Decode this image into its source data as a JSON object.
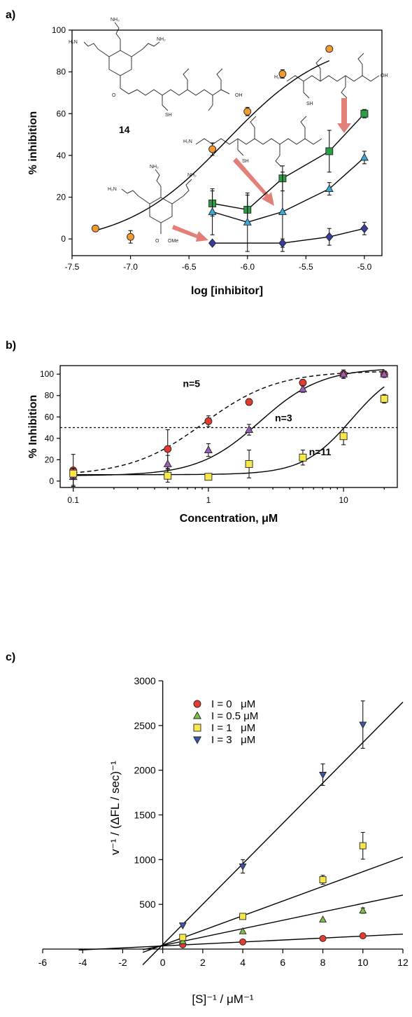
{
  "panels": {
    "a": {
      "label": "a)"
    },
    "b": {
      "label": "b)"
    },
    "c": {
      "label": "c)"
    }
  },
  "structure_labels": {
    "compound_14": "14"
  },
  "chart_data": [
    {
      "id": "a",
      "type": "scatter",
      "xlabel": "log [inhibitor]",
      "ylabel": "% inhibition",
      "xlim": [
        -7.5,
        -4.85
      ],
      "ylim": [
        -8,
        100
      ],
      "xticks": [
        -7.5,
        -7.0,
        -6.5,
        -6.0,
        -5.5,
        -5.0
      ],
      "xtick_labels": [
        "-7.5",
        "-7.0",
        "-6.5",
        "-6.0",
        "-5.5",
        "-5.0"
      ],
      "yticks": [
        0,
        20,
        40,
        60,
        80,
        100
      ],
      "ytick_labels": [
        "0",
        "20",
        "40",
        "60",
        "80",
        "100"
      ],
      "grid": false,
      "fit_curve": {
        "series": "orange",
        "bottom": -3,
        "top": 97,
        "log_ic50": -6.18,
        "hill": 1.0,
        "x_range": [
          -7.3,
          -5.3
        ]
      },
      "series": [
        {
          "marker": "circle",
          "color": "#F39A2F",
          "x": [
            -7.3,
            -7.0,
            -6.3,
            -6.0,
            -5.7,
            -5.3
          ],
          "y": [
            5,
            1,
            43,
            61,
            79,
            91
          ],
          "err": [
            0,
            3,
            3,
            2,
            2,
            0
          ]
        },
        {
          "marker": "square",
          "color": "#2E9E46",
          "x": [
            -6.3,
            -6.0,
            -5.7,
            -5.3,
            -5.0
          ],
          "y": [
            17,
            14,
            29,
            42,
            60
          ],
          "err": [
            6,
            7,
            6,
            10,
            2
          ]
        },
        {
          "marker": "triangle",
          "color": "#39A9D8",
          "x": [
            -6.3,
            -6.0,
            -5.7,
            -5.3,
            -5.0
          ],
          "y": [
            13,
            8,
            13,
            24,
            39
          ],
          "err": [
            11,
            14,
            19,
            3,
            3
          ]
        },
        {
          "marker": "diamond",
          "color": "#3B3B9E",
          "x": [
            -6.3,
            -5.7,
            -5.3,
            -5.0
          ],
          "y": [
            -2,
            -2,
            1,
            5
          ],
          "err": [
            1,
            2,
            4,
            3
          ]
        }
      ]
    },
    {
      "id": "b",
      "type": "scatter",
      "xlabel": "Concentration, μM",
      "ylabel": "% Inhibition",
      "xscale": "log",
      "xlim": [
        0.08,
        25
      ],
      "ylim": [
        -6,
        108
      ],
      "xticks": [
        0.1,
        1,
        10
      ],
      "xtick_labels": [
        "0.1",
        "1",
        "10"
      ],
      "yticks": [
        0,
        20,
        40,
        60,
        80,
        100
      ],
      "ytick_labels": [
        "0",
        "20",
        "40",
        "60",
        "80",
        "100"
      ],
      "grid": false,
      "reference_line": {
        "y": 50,
        "style": "dotted"
      },
      "annotations": [
        {
          "text": "n=5",
          "x": 0.75,
          "y": 88
        },
        {
          "text": "n=3",
          "x": 3.6,
          "y": 56
        },
        {
          "text": "n=11",
          "x": 6.7,
          "y": 24
        }
      ],
      "fit_curves": [
        {
          "series": "red",
          "style": "dashed",
          "bottom": 5,
          "top": 103,
          "ic50": 0.92,
          "hill": 1.6
        },
        {
          "series": "purple",
          "style": "solid",
          "bottom": 5,
          "top": 106,
          "ic50": 2.4,
          "hill": 1.9
        },
        {
          "series": "yellow",
          "style": "solid",
          "bottom": 6,
          "top": 110,
          "ic50": 11.5,
          "hill": 2.4
        }
      ],
      "series": [
        {
          "marker": "circle",
          "color": "#E53B2E",
          "x": [
            0.1,
            0.5,
            1,
            2,
            5,
            10,
            20
          ],
          "y": [
            10,
            30,
            56,
            74,
            92,
            100,
            100
          ],
          "err": [
            15,
            18,
            5,
            3,
            3,
            4,
            3
          ]
        },
        {
          "marker": "triangle",
          "color": "#9C5BB5",
          "x": [
            0.1,
            0.5,
            1,
            2,
            5,
            10,
            20
          ],
          "y": [
            4,
            16,
            29,
            48,
            86,
            100,
            100
          ],
          "err": [
            8,
            8,
            6,
            5,
            3,
            2,
            2
          ]
        },
        {
          "marker": "square",
          "color": "#F6E74A",
          "x": [
            0.1,
            0.5,
            1,
            2,
            5,
            10,
            20
          ],
          "y": [
            7,
            5,
            4,
            16,
            22,
            42,
            77
          ],
          "err": [
            5,
            6,
            3,
            13,
            7,
            8,
            4
          ]
        }
      ]
    },
    {
      "id": "c",
      "type": "scatter",
      "xlabel": "[S]⁻¹ / μM⁻¹",
      "ylabel": "v⁻¹ / (ΔFL / sec)⁻¹",
      "xlim": [
        -6,
        12
      ],
      "ylim": [
        0,
        3000
      ],
      "xticks": [
        -6,
        -4,
        -2,
        0,
        2,
        4,
        6,
        8,
        10,
        12
      ],
      "xtick_labels": [
        "-6",
        "-4",
        "-2",
        "0",
        "2",
        "4",
        "6",
        "8",
        "10",
        "12"
      ],
      "yticks": [
        500,
        1000,
        1500,
        2000,
        2500,
        3000
      ],
      "ytick_labels": [
        "500",
        "1000",
        "1500",
        "2000",
        "2500",
        "3000"
      ],
      "grid": false,
      "legend": {
        "position": "top-left"
      },
      "lines": [
        {
          "series": "I = 0   μM",
          "slope": 11,
          "intercept": 35,
          "x_start": -4.2
        },
        {
          "series": "I = 0.5 μM",
          "slope": 47,
          "intercept": 40,
          "x_start": -1
        },
        {
          "series": "I = 1   μM",
          "slope": 82,
          "intercept": 45,
          "x_start": -1
        },
        {
          "series": "I = 3   μM",
          "slope": 226,
          "intercept": 50,
          "x_start": -1
        }
      ],
      "series": [
        {
          "name": "I = 0   μM",
          "marker": "circle",
          "color": "#E53B2E",
          "x": [
            1,
            4,
            8,
            10
          ],
          "y": [
            48,
            80,
            118,
            148
          ],
          "err": [
            0,
            0,
            0,
            0
          ]
        },
        {
          "name": "I = 0.5 μM",
          "marker": "triangle",
          "color": "#7CC242",
          "x": [
            1,
            4,
            8,
            10
          ],
          "y": [
            88,
            198,
            330,
            430
          ],
          "err": [
            0,
            0,
            0,
            30
          ]
        },
        {
          "name": "I = 1   μM",
          "marker": "square",
          "color": "#F6E74A",
          "x": [
            1,
            4,
            8,
            10
          ],
          "y": [
            130,
            365,
            775,
            1155
          ],
          "err": [
            0,
            0,
            50,
            150
          ]
        },
        {
          "name": "I = 3   μM",
          "marker": "triangle-down",
          "color": "#3B55A8",
          "x": [
            1,
            4,
            8,
            10
          ],
          "y": [
            265,
            925,
            1950,
            2510
          ],
          "err": [
            0,
            75,
            120,
            265
          ]
        }
      ]
    }
  ]
}
